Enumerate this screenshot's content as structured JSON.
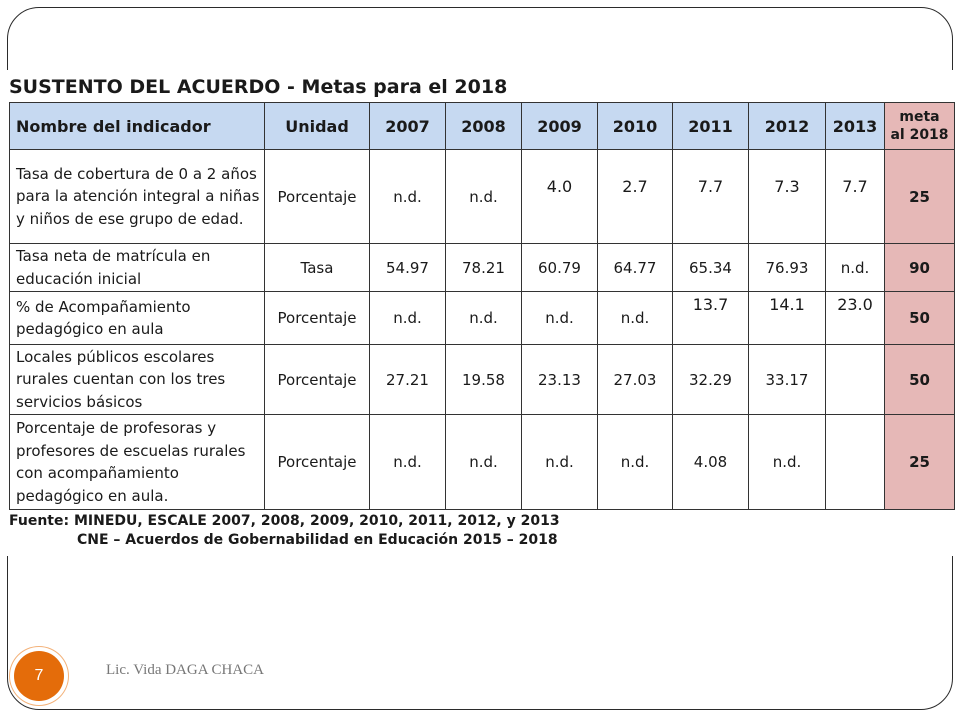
{
  "slide": {
    "title": "SUSTENTO DEL ACUERDO - Metas para el 2018",
    "table": {
      "headers": {
        "indicator": "Nombre del indicador",
        "unit": "Unidad",
        "years": [
          "2007",
          "2008",
          "2009",
          "2010",
          "2011",
          "2012",
          "2013"
        ],
        "meta_line1": "meta",
        "meta_line2": "al 2018"
      },
      "rows": [
        {
          "indicator": "Tasa de cobertura de 0 a 2 años para la atención integral a niñas y niños de ese grupo de edad.",
          "unit": "Porcentaje",
          "values": [
            "n.d.",
            "n.d.",
            "4.0",
            "2.7",
            "7.7",
            "7.3",
            "7.7"
          ],
          "meta": "25"
        },
        {
          "indicator": "Tasa neta de matrícula en educación inicial",
          "unit": "Tasa",
          "values": [
            "54.97",
            "78.21",
            "60.79",
            "64.77",
            "65.34",
            "76.93",
            "n.d."
          ],
          "meta": "90"
        },
        {
          "indicator": "% de Acompañamiento pedagógico en aula",
          "unit": "Porcentaje",
          "values": [
            "n.d.",
            "n.d.",
            "n.d.",
            "n.d.",
            "13.7",
            "14.1",
            "23.0"
          ],
          "meta": "50"
        },
        {
          "indicator": "Locales públicos escolares rurales cuentan con los tres servicios básicos",
          "unit": "Porcentaje",
          "values": [
            "27.21",
            "19.58",
            "23.13",
            "27.03",
            "32.29",
            "33.17",
            ""
          ],
          "meta": "50"
        },
        {
          "indicator": "Porcentaje de profesoras y profesores de escuelas rurales con acompañamiento pedagógico en aula.",
          "unit": "Porcentaje",
          "values": [
            "n.d.",
            "n.d.",
            "n.d.",
            "n.d.",
            "4.08",
            "n.d.",
            ""
          ],
          "meta": "25"
        }
      ]
    },
    "source_line1": "Fuente: MINEDU, ESCALE 2007, 2008, 2009, 2010, 2011, 2012, y 2013",
    "source_line2": "CNE – Acuerdos de Gobernabilidad en Educación 2015 – 2018"
  },
  "footer": {
    "page_number": "7",
    "author": "Lic. Vida DAGA CHACA"
  },
  "colors": {
    "header_blue": "#c6d9f1",
    "meta_pink": "#e6b8b7",
    "badge_orange": "#e46c0a"
  }
}
